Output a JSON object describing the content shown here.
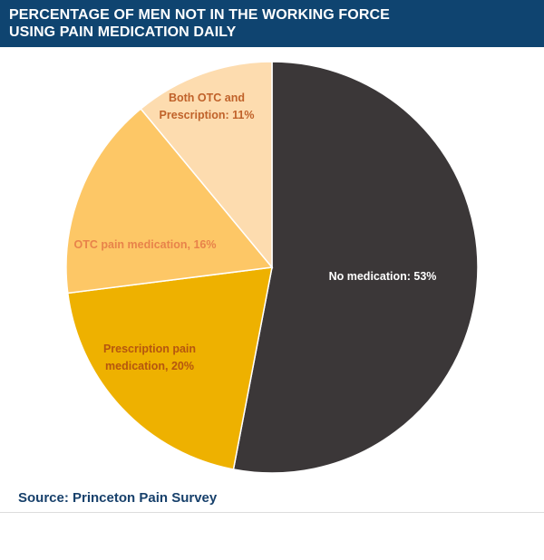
{
  "header": {
    "title_line1": "PERCENTAGE OF MEN NOT IN THE WORKING FORCE",
    "title_line2": "USING PAIN MEDICATION DAILY",
    "background_color": "#0f4470"
  },
  "chart_data": {
    "type": "pie",
    "title": "Percentage of men not in the working force using pain medication daily",
    "start_angle": "12 o'clock",
    "direction": "clockwise",
    "slices": [
      {
        "name": "No medication",
        "value": 53,
        "label_lines": [
          "No medication:  53%"
        ],
        "color": "#3b3738",
        "label_color": "#ffffff"
      },
      {
        "name": "Prescription pain medication",
        "value": 20,
        "label_lines": [
          "Prescription  pain",
          "medication,  20%"
        ],
        "color": "#eeb100",
        "label_color": "#b5560f"
      },
      {
        "name": "OTC pain medication",
        "value": 16,
        "label_lines": [
          "OTC pain  medication,  16%"
        ],
        "color": "#fdc766",
        "label_color": "#e8834a"
      },
      {
        "name": "Both OTC and Prescription",
        "value": 11,
        "label_lines": [
          "Both OTC and",
          "Prescription:  11%"
        ],
        "color": "#fddcaf",
        "label_color": "#c0622a"
      }
    ],
    "legend": "none"
  },
  "footer": {
    "source": "Source: Princeton Pain Survey"
  }
}
